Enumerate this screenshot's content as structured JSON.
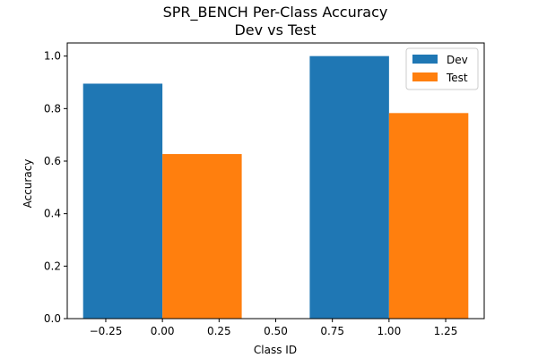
{
  "chart_data": {
    "type": "bar",
    "title": "SPR_BENCH Per-Class Accuracy",
    "subtitle": "Dev vs Test",
    "xlabel": "Class ID",
    "ylabel": "Accuracy",
    "xlim": [
      -0.42,
      1.42
    ],
    "ylim": [
      0,
      1.05
    ],
    "bar_width": 0.35,
    "x_ticks": [
      -0.25,
      0.0,
      0.25,
      0.5,
      0.75,
      1.0,
      1.25
    ],
    "x_tick_labels": [
      "−0.25",
      "0.00",
      "0.25",
      "0.50",
      "0.75",
      "1.00",
      "1.25"
    ],
    "y_ticks": [
      0.0,
      0.2,
      0.4,
      0.6,
      0.8,
      1.0
    ],
    "y_tick_labels": [
      "0.0",
      "0.2",
      "0.4",
      "0.6",
      "0.8",
      "1.0"
    ],
    "grid": false,
    "legend_position": "top-right",
    "series": [
      {
        "name": "Dev",
        "color": "#1f77b4",
        "offset": -0.175,
        "x": [
          0,
          1
        ],
        "values": [
          0.895,
          1.0
        ]
      },
      {
        "name": "Test",
        "color": "#ff7f0e",
        "offset": 0.175,
        "x": [
          0,
          1
        ],
        "values": [
          0.627,
          0.783
        ]
      }
    ]
  }
}
